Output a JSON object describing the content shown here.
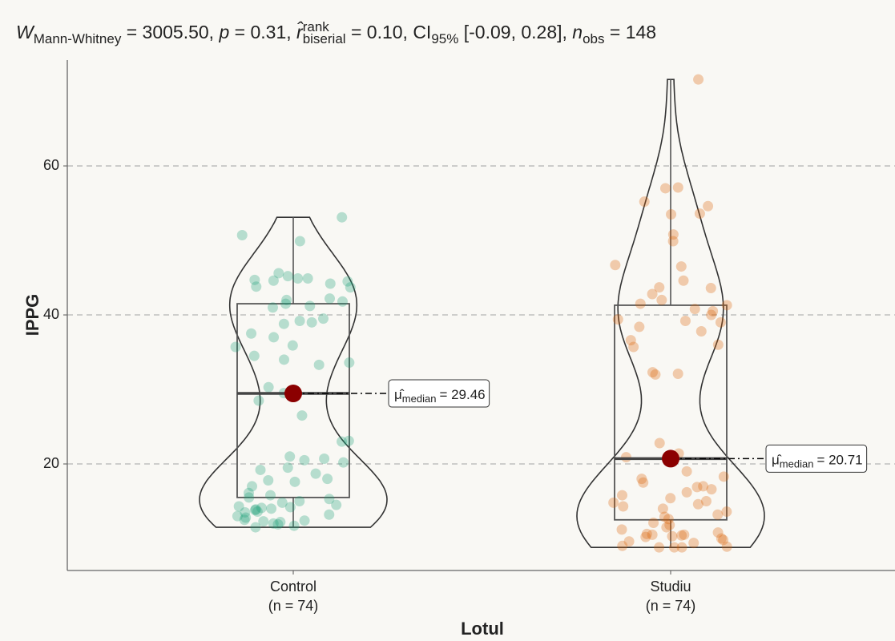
{
  "chart_data": {
    "type": "violin",
    "title_parts": [
      {
        "text": "W",
        "style": "italic"
      },
      {
        "text": "Mann-Whitney",
        "style": "sub"
      },
      {
        "text": " = 3005.50, ",
        "style": "normal"
      },
      {
        "text": "p",
        "style": "italic"
      },
      {
        "text": " = 0.31, ",
        "style": "normal"
      },
      {
        "text": "r̂",
        "style": "italic"
      },
      {
        "text": "rank",
        "style": "sup"
      },
      {
        "text": "biserial",
        "style": "substack"
      },
      {
        "text": " = 0.10, CI",
        "style": "normal"
      },
      {
        "text": "95%",
        "style": "sub"
      },
      {
        "text": " [-0.09, 0.28], ",
        "style": "normal"
      },
      {
        "text": "n",
        "style": "italic"
      },
      {
        "text": "obs",
        "style": "sub"
      },
      {
        "text": " = 148",
        "style": "normal"
      }
    ],
    "x_label": "Lotul",
    "y_label": "IPPG",
    "categories": [
      "Control",
      "Studiu"
    ],
    "category_counts": [
      "(n = 74)",
      "(n = 74)"
    ],
    "estimate_symbol": "μ̂",
    "estimate_subscript": "median",
    "ylim": [
      5.7,
      74.2
    ],
    "yticks": [
      20,
      40,
      60
    ],
    "grid": true,
    "series": [
      {
        "name": "Control",
        "color": "#1b9e77",
        "values": [
          53.1,
          50.7,
          49.9,
          45.6,
          45.2,
          44.9,
          44.7,
          44.6,
          44.9,
          44.5,
          44.2,
          43.8,
          43.7,
          42.2,
          42.0,
          41.8,
          41.5,
          41.2,
          41.0,
          39.5,
          39.2,
          39.0,
          38.8,
          37.5,
          37.0,
          35.9,
          35.7,
          34.5,
          34.0,
          33.6,
          33.3,
          30.3,
          29.5,
          28.5,
          26.5,
          23.1,
          23.0,
          21.0,
          20.7,
          20.5,
          20.2,
          19.5,
          19.2,
          18.7,
          18.0,
          17.8,
          17.6,
          17.0,
          16.1,
          15.8,
          15.5,
          15.3,
          15.0,
          14.8,
          14.5,
          14.2,
          14.1,
          14.0,
          13.9,
          13.8,
          13.5,
          13.2,
          13.0,
          12.8,
          12.5,
          12.4,
          12.3,
          12.2,
          12.0,
          11.9,
          11.7,
          11.5,
          14.3,
          13.6
        ],
        "box": {
          "whisker_low": 11.5,
          "q1": 15.5,
          "q3": 41.5,
          "whisker_high": 53.1
        },
        "median": 29.46,
        "median_label": "= 29.46"
      },
      {
        "name": "Studiu",
        "color": "#d95f02",
        "values": [
          71.6,
          57.1,
          57.0,
          55.2,
          54.6,
          53.6,
          53.5,
          50.8,
          49.9,
          46.7,
          46.5,
          44.6,
          43.7,
          43.6,
          42.8,
          42.0,
          41.5,
          41.3,
          40.8,
          40.5,
          40.0,
          39.4,
          39.2,
          39.0,
          38.4,
          37.8,
          36.6,
          36.0,
          35.7,
          32.3,
          32.1,
          32.0,
          22.8,
          21.4,
          20.9,
          19.0,
          18.3,
          18.0,
          17.5,
          17.0,
          16.6,
          16.2,
          15.8,
          15.4,
          15.0,
          14.6,
          14.3,
          14.0,
          13.6,
          13.2,
          12.6,
          12.1,
          11.8,
          11.2,
          10.8,
          10.6,
          10.5,
          10.5,
          10.4,
          10.3,
          10.2,
          10.0,
          9.8,
          9.6,
          9.4,
          9.0,
          8.9,
          8.8,
          8.8,
          8.8,
          12.9,
          11.5,
          14.8,
          16.9
        ],
        "box": {
          "whisker_low": 8.8,
          "q1": 12.5,
          "q3": 41.3,
          "whisker_high": 71.6
        },
        "median": 20.71,
        "median_label": "= 20.71"
      }
    ]
  }
}
